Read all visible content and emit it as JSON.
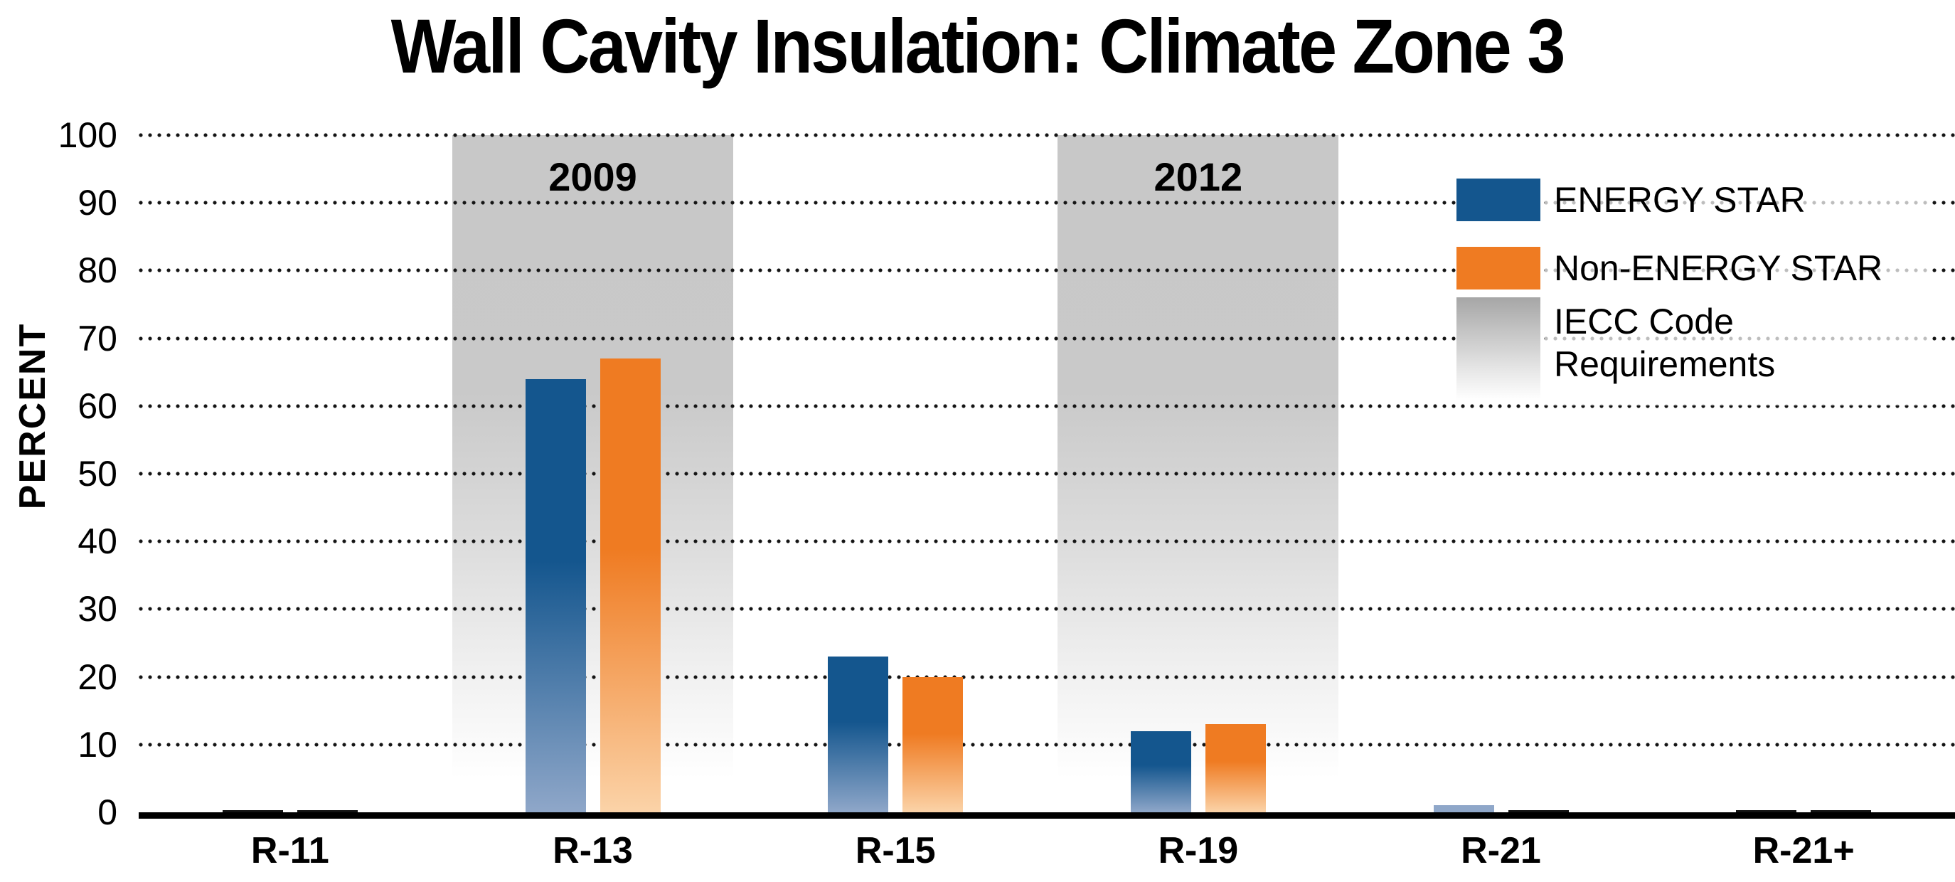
{
  "chart_data": {
    "type": "bar",
    "title": "Wall Cavity Insulation: Climate Zone 3",
    "xlabel": "",
    "ylabel": "PERCENT",
    "ylim": [
      0,
      100
    ],
    "ytick_step": 10,
    "yticks": [
      100,
      90,
      80,
      70,
      60,
      50,
      40,
      30,
      20,
      10,
      0
    ],
    "grid": "horizontal-dotted",
    "grid_color": "#141414",
    "categories": [
      "R-11",
      "R-13",
      "R-15",
      "R-19",
      "R-21",
      "R-21+"
    ],
    "series": [
      {
        "name": "ENERGY STAR",
        "color": "#14568E",
        "color_light": "#8FA7C9",
        "values": [
          0,
          64,
          23,
          12,
          1,
          0
        ]
      },
      {
        "name": "Non-ENERGY STAR",
        "color": "#EF7B22",
        "color_light": "#FBD3A8",
        "values": [
          0,
          67,
          20,
          13,
          0,
          0
        ]
      }
    ],
    "code_bands": [
      {
        "label": "2009",
        "category": "R-13",
        "color": "#C9C9C9"
      },
      {
        "label": "2012",
        "category": "R-19",
        "color": "#C9C9C9"
      }
    ],
    "legend": {
      "position": "upper-right",
      "entries": [
        {
          "label": "ENERGY STAR",
          "swatch": "solid-blue",
          "color": "#14568E"
        },
        {
          "label": "Non-ENERGY STAR",
          "swatch": "solid-orange",
          "color": "#EF7B22"
        },
        {
          "label": "IECC Code Requirements",
          "label_lines": [
            "IECC Code",
            "Requirements"
          ],
          "swatch": "gray-gradient",
          "color": "#A6A6A6"
        }
      ]
    },
    "axis_color": "#000000",
    "background_color": "#FFFFFF"
  }
}
